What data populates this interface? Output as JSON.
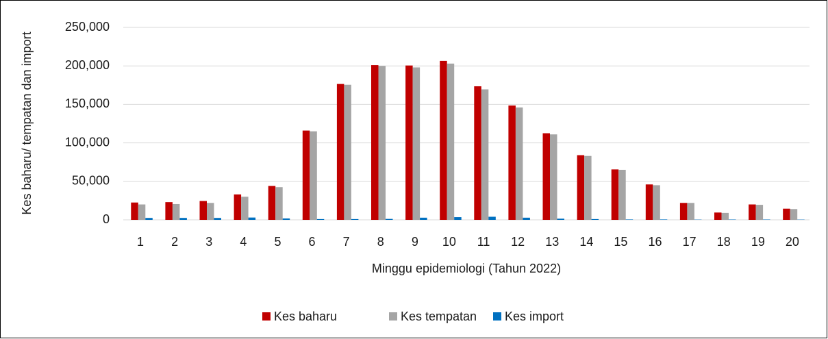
{
  "chart_data": {
    "type": "bar",
    "x_label": "Minggu epidemiologi (Tahun 2022)",
    "y_label": "Kes baharu/ tempatan dan import",
    "categories": [
      "1",
      "2",
      "3",
      "4",
      "5",
      "6",
      "7",
      "8",
      "9",
      "10",
      "11",
      "12",
      "13",
      "14",
      "15",
      "16",
      "17",
      "18",
      "19",
      "20"
    ],
    "series": [
      {
        "name": "Kes baharu",
        "color": "#c00000",
        "values": [
          22500,
          23000,
          24500,
          33000,
          44000,
          116000,
          176500,
          201000,
          200500,
          206500,
          173500,
          148500,
          112500,
          84000,
          65500,
          46000,
          22000,
          9500,
          20000,
          14500
        ]
      },
      {
        "name": "Kes tempatan",
        "color": "#a5a5a5",
        "values": [
          20000,
          20500,
          22000,
          30000,
          42500,
          115000,
          175500,
          200000,
          198000,
          203000,
          169500,
          146000,
          111000,
          83000,
          65000,
          45000,
          22000,
          9000,
          19500,
          14000
        ]
      },
      {
        "name": "Kes import",
        "color": "#0070c0",
        "values": [
          2500,
          2500,
          2500,
          3000,
          1800,
          1000,
          1000,
          1200,
          2800,
          3500,
          4000,
          2800,
          1500,
          1000,
          500,
          500,
          300,
          400,
          400,
          300
        ]
      }
    ],
    "ylim": [
      0,
      250000
    ],
    "yticks": [
      0,
      {
        "value": 50000,
        "label": "50,000"
      },
      {
        "value": 100000,
        "label": "100,000"
      },
      {
        "value": 150000,
        "label": "150,000"
      },
      {
        "value": 200000,
        "label": "200,000"
      },
      {
        "value": 250000,
        "label": "250,000"
      }
    ],
    "grid": true,
    "legend": "bottom"
  }
}
